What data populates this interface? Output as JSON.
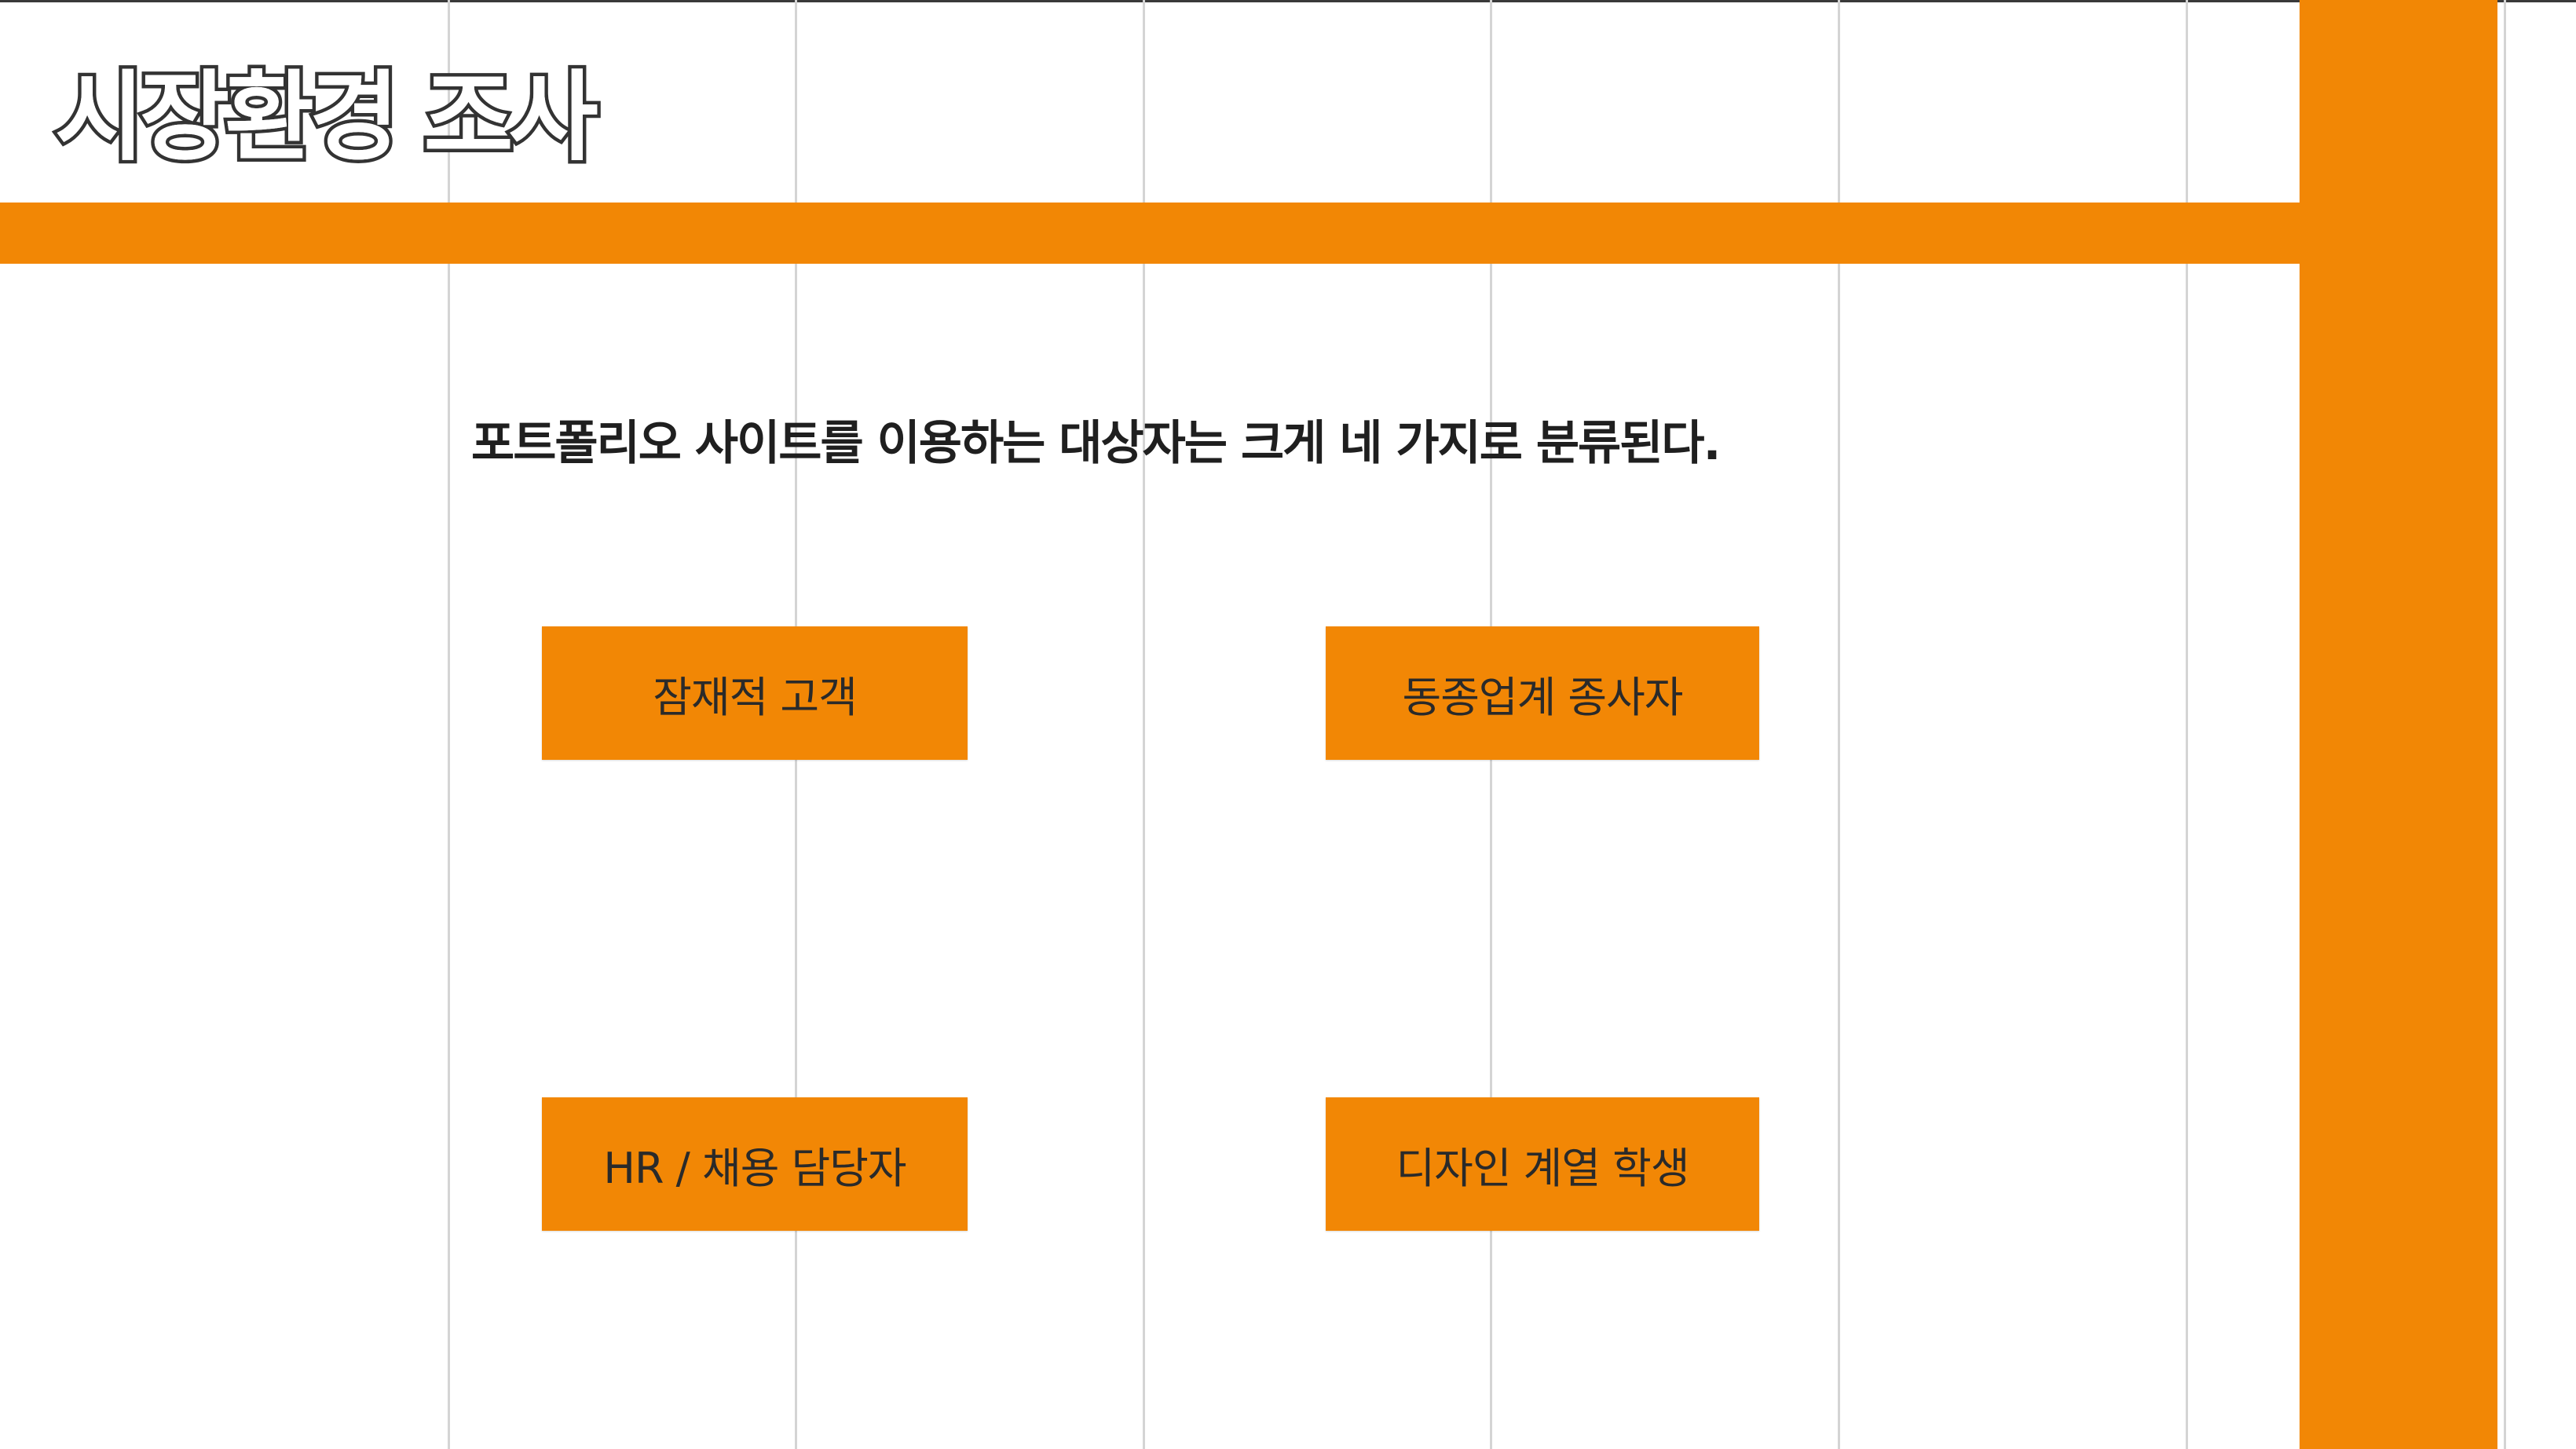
{
  "slide": {
    "title": "시장환경 조사",
    "subtitle": "포트폴리오 사이트를 이용하는 대상자는 크게 네 가지로 분류된다.",
    "accent_color": "#F28705",
    "categories": [
      {
        "label": "잠재적 고객"
      },
      {
        "label": "동종업계 종사자"
      },
      {
        "label": "HR / 채용 담당자"
      },
      {
        "label": "디자인 계열 학생"
      }
    ]
  }
}
